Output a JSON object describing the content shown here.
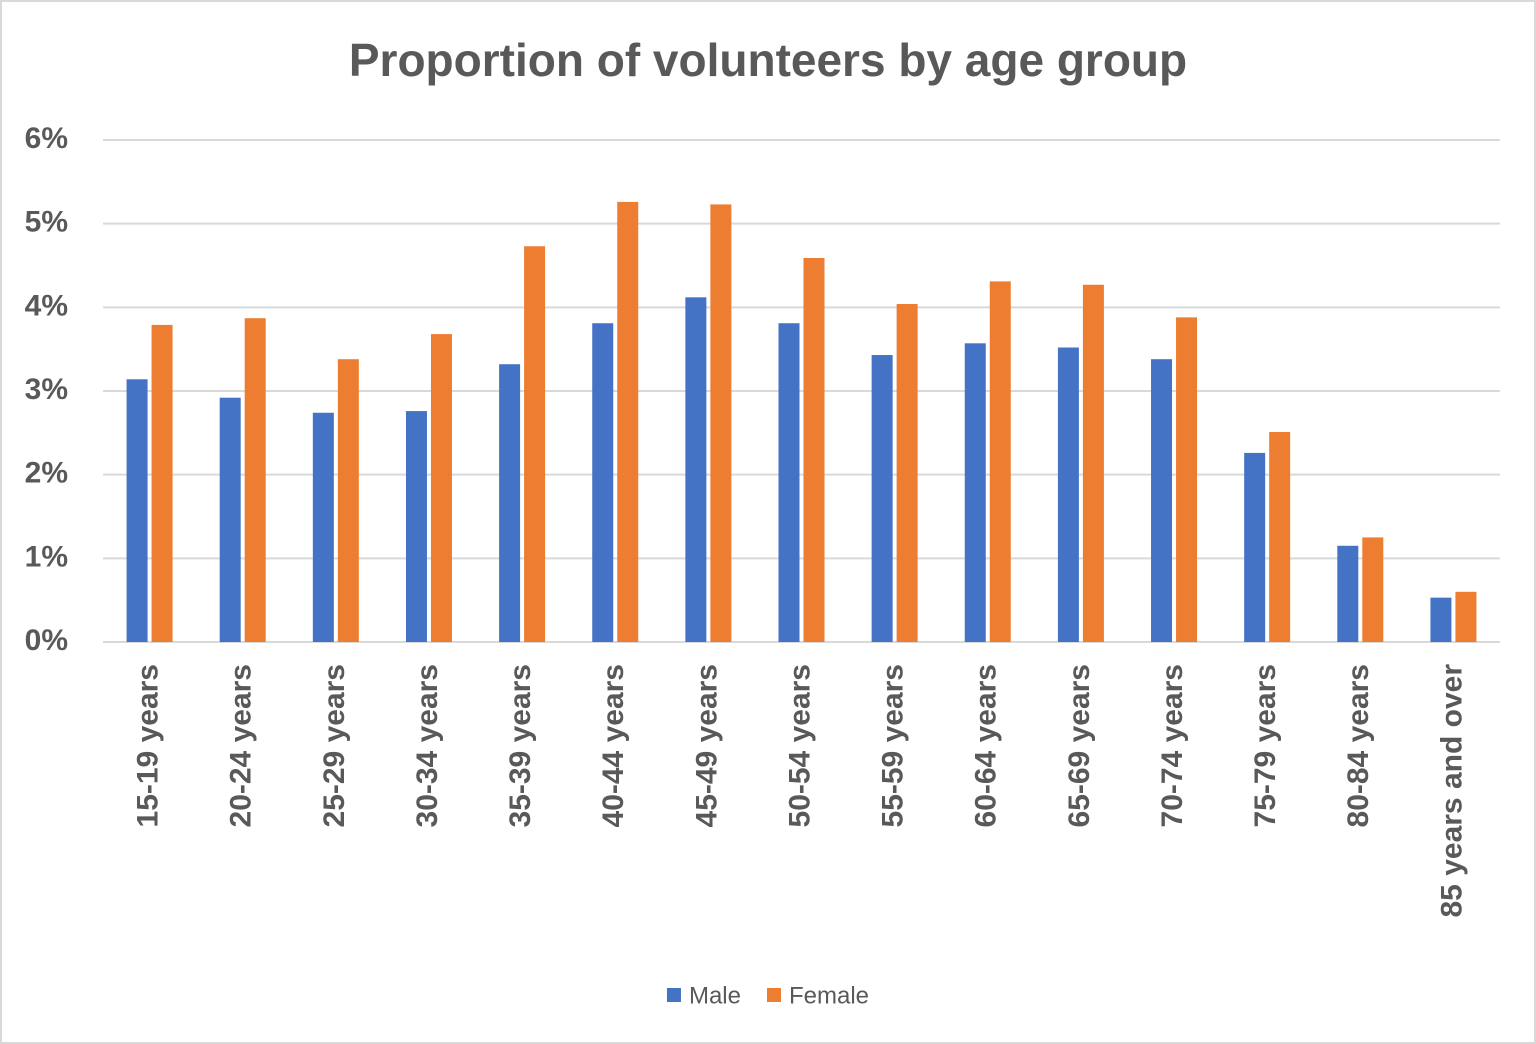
{
  "chart_data": {
    "type": "bar",
    "title": "Proportion of volunteers by age group",
    "categories": [
      "15-19 years",
      "20-24 years",
      "25-29 years",
      "30-34 years",
      "35-39 years",
      "40-44 years",
      "45-49 years",
      "50-54 years",
      "55-59 years",
      "60-64 years",
      "65-69 years",
      "70-74 years",
      "75-79 years",
      "80-84 years",
      "85 years and over"
    ],
    "series": [
      {
        "name": "Male",
        "color": "#4472c4",
        "values": [
          3.14,
          2.92,
          2.74,
          2.76,
          3.32,
          3.81,
          4.12,
          3.81,
          3.43,
          3.57,
          3.52,
          3.38,
          2.26,
          1.15,
          0.53
        ]
      },
      {
        "name": "Female",
        "color": "#ed7d31",
        "values": [
          3.79,
          3.87,
          3.38,
          3.68,
          4.73,
          5.26,
          5.23,
          4.59,
          4.04,
          4.31,
          4.27,
          3.88,
          2.51,
          1.25,
          0.6
        ]
      }
    ],
    "ylim": [
      0,
      6
    ],
    "yticks": [
      {
        "value": 0,
        "label": "0%"
      },
      {
        "value": 1,
        "label": "1%"
      },
      {
        "value": 2,
        "label": "2%"
      },
      {
        "value": 3,
        "label": "3%"
      },
      {
        "value": 4,
        "label": "4%"
      },
      {
        "value": 5,
        "label": "5%"
      },
      {
        "value": 6,
        "label": "6%"
      }
    ],
    "grid": true,
    "legend": "bottom"
  }
}
